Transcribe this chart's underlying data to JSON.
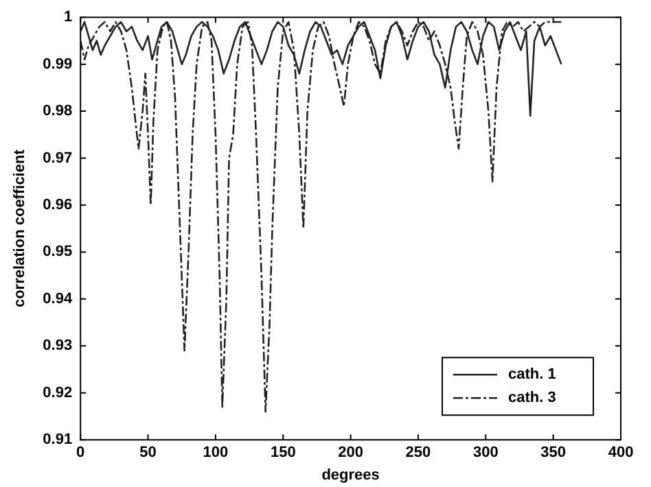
{
  "chart_data": {
    "type": "line",
    "xlabel": "degrees",
    "ylabel": "correlation coefficient",
    "xlim": [
      0,
      400
    ],
    "xticks": [
      0,
      50,
      100,
      150,
      200,
      250,
      300,
      350,
      400
    ],
    "ylim": [
      0.91,
      1
    ],
    "yticks": [
      0.91,
      0.92,
      0.93,
      0.94,
      0.95,
      0.96,
      0.97,
      0.98,
      0.99,
      {
        "value": 1,
        "label": "1"
      }
    ],
    "grid": false,
    "legend": "bottom right",
    "marker": "none",
    "series": [
      {
        "name": "cath. 1",
        "color": "#222222",
        "line_style": "solid",
        "x": [
          0,
          3,
          6,
          9,
          12,
          15,
          18,
          22,
          26,
          30,
          34,
          38,
          42,
          46,
          50,
          53,
          57,
          60,
          64,
          68,
          72,
          75,
          78,
          82,
          86,
          90,
          94,
          98,
          102,
          106,
          110,
          114,
          118,
          122,
          126,
          130,
          134,
          138,
          142,
          146,
          150,
          154,
          158,
          162,
          166,
          170,
          174,
          178,
          182,
          186,
          190,
          194,
          198,
          202,
          206,
          210,
          214,
          218,
          222,
          226,
          230,
          234,
          238,
          242,
          246,
          250,
          254,
          258,
          262,
          266,
          270,
          274,
          278,
          282,
          286,
          290,
          294,
          298,
          302,
          306,
          310,
          314,
          318,
          322,
          326,
          330,
          333,
          336,
          340,
          344,
          348,
          352,
          356
        ],
        "values": [
          0.997,
          0.999,
          0.996,
          0.993,
          0.995,
          0.992,
          0.994,
          0.996,
          0.998,
          0.999,
          0.997,
          0.998,
          0.995,
          0.993,
          0.996,
          0.991,
          0.995,
          0.998,
          0.999,
          0.997,
          0.993,
          0.99,
          0.992,
          0.996,
          0.998,
          0.999,
          0.998,
          0.996,
          0.993,
          0.988,
          0.991,
          0.995,
          0.998,
          0.999,
          0.996,
          0.993,
          0.99,
          0.993,
          0.997,
          0.999,
          0.998,
          0.994,
          0.992,
          0.988,
          0.993,
          0.997,
          0.999,
          0.998,
          0.995,
          0.992,
          0.993,
          0.99,
          0.994,
          0.996,
          0.998,
          0.999,
          0.996,
          0.993,
          0.987,
          0.994,
          0.998,
          0.999,
          0.996,
          0.991,
          0.995,
          0.998,
          0.999,
          0.997,
          0.992,
          0.99,
          0.985,
          0.993,
          0.998,
          0.999,
          0.997,
          0.993,
          0.99,
          0.996,
          0.999,
          0.998,
          0.993,
          0.997,
          0.999,
          0.996,
          0.993,
          0.997,
          0.979,
          0.995,
          0.998,
          0.994,
          0.996,
          0.993,
          0.99
        ]
      },
      {
        "name": "cath. 3",
        "color": "#222222",
        "line_style": "dashed",
        "x": [
          0,
          3,
          6,
          10,
          14,
          18,
          22,
          26,
          30,
          34,
          38,
          41,
          43,
          46,
          48,
          50,
          52,
          54,
          57,
          61,
          64,
          67,
          70,
          73,
          77,
          80,
          83,
          86,
          90,
          94,
          97,
          100,
          103,
          105,
          108,
          110,
          113,
          116,
          120,
          124,
          127,
          130,
          134,
          137,
          140,
          142,
          146,
          150,
          154,
          158,
          162,
          165,
          168,
          172,
          176,
          180,
          184,
          188,
          192,
          195,
          198,
          202,
          206,
          210,
          214,
          218,
          222,
          226,
          230,
          234,
          238,
          242,
          246,
          250,
          254,
          258,
          262,
          266,
          270,
          274,
          277,
          280,
          283,
          286,
          290,
          294,
          298,
          302,
          305,
          308,
          312,
          316,
          320,
          324,
          328,
          332,
          336,
          340,
          344,
          348,
          352,
          356
        ],
        "values": [
          0.995,
          0.991,
          0.994,
          0.996,
          0.998,
          0.999,
          0.997,
          0.999,
          0.997,
          0.993,
          0.985,
          0.977,
          0.972,
          0.98,
          0.988,
          0.975,
          0.96,
          0.978,
          0.993,
          0.998,
          0.999,
          0.995,
          0.983,
          0.96,
          0.929,
          0.95,
          0.975,
          0.99,
          0.998,
          0.999,
          0.995,
          0.975,
          0.945,
          0.917,
          0.94,
          0.97,
          0.975,
          0.99,
          0.998,
          0.999,
          0.994,
          0.975,
          0.945,
          0.916,
          0.935,
          0.955,
          0.985,
          0.997,
          0.999,
          0.993,
          0.975,
          0.955,
          0.98,
          0.993,
          0.998,
          0.999,
          0.996,
          0.99,
          0.985,
          0.981,
          0.99,
          0.996,
          0.999,
          0.998,
          0.995,
          0.99,
          0.988,
          0.995,
          0.998,
          0.999,
          0.997,
          0.994,
          0.997,
          0.999,
          0.998,
          0.995,
          0.997,
          0.994,
          0.99,
          0.985,
          0.978,
          0.972,
          0.985,
          0.996,
          0.999,
          0.997,
          0.992,
          0.98,
          0.965,
          0.985,
          0.997,
          0.999,
          0.998,
          0.999,
          0.997,
          0.998,
          0.999,
          0.998,
          0.999,
          0.999,
          0.999,
          0.999
        ]
      }
    ]
  }
}
